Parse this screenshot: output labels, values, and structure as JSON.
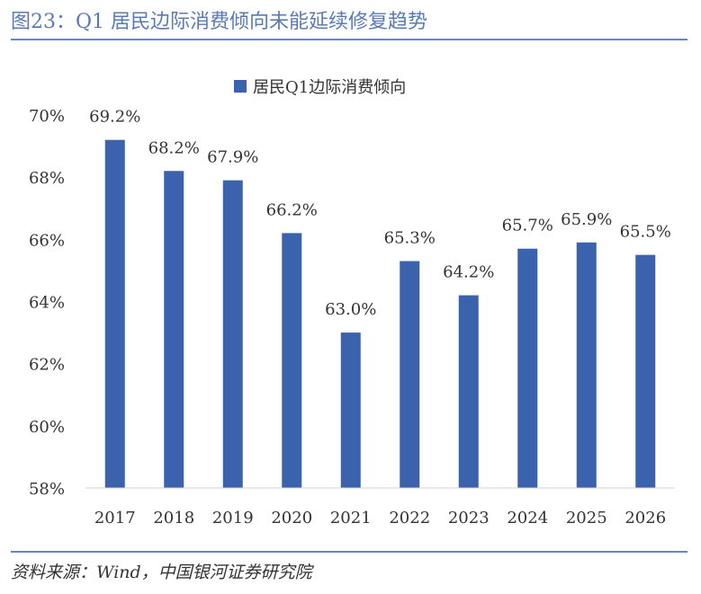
{
  "header": {
    "title": "图23：Q1 居民边际消费倾向未能延续修复趋势"
  },
  "footer": {
    "source": "资料来源：Wind，中国银河证券研究院"
  },
  "colors": {
    "bar": "#3b62ad",
    "title": "#5a7ab5",
    "rule": "#6a86bd",
    "text": "#333333"
  },
  "chart_data": {
    "type": "bar",
    "categories": [
      "2017",
      "2018",
      "2019",
      "2020",
      "2021",
      "2022",
      "2023",
      "2024",
      "2025",
      "2026"
    ],
    "series": [
      {
        "name": "居民Q1边际消费倾向",
        "values": [
          69.2,
          68.2,
          67.9,
          66.2,
          63.0,
          65.3,
          64.2,
          65.7,
          65.9,
          65.5
        ],
        "labels": [
          "69.2%",
          "68.2%",
          "67.9%",
          "66.2%",
          "63.0%",
          "65.3%",
          "64.2%",
          "65.7%",
          "65.9%",
          "65.5%"
        ]
      }
    ],
    "ylim": [
      58,
      70
    ],
    "yticks": [
      58,
      60,
      62,
      64,
      66,
      68,
      70
    ],
    "ytick_labels": [
      "58%",
      "60%",
      "62%",
      "64%",
      "66%",
      "68%",
      "70%"
    ],
    "legend_position": "top-center",
    "grid": false
  }
}
